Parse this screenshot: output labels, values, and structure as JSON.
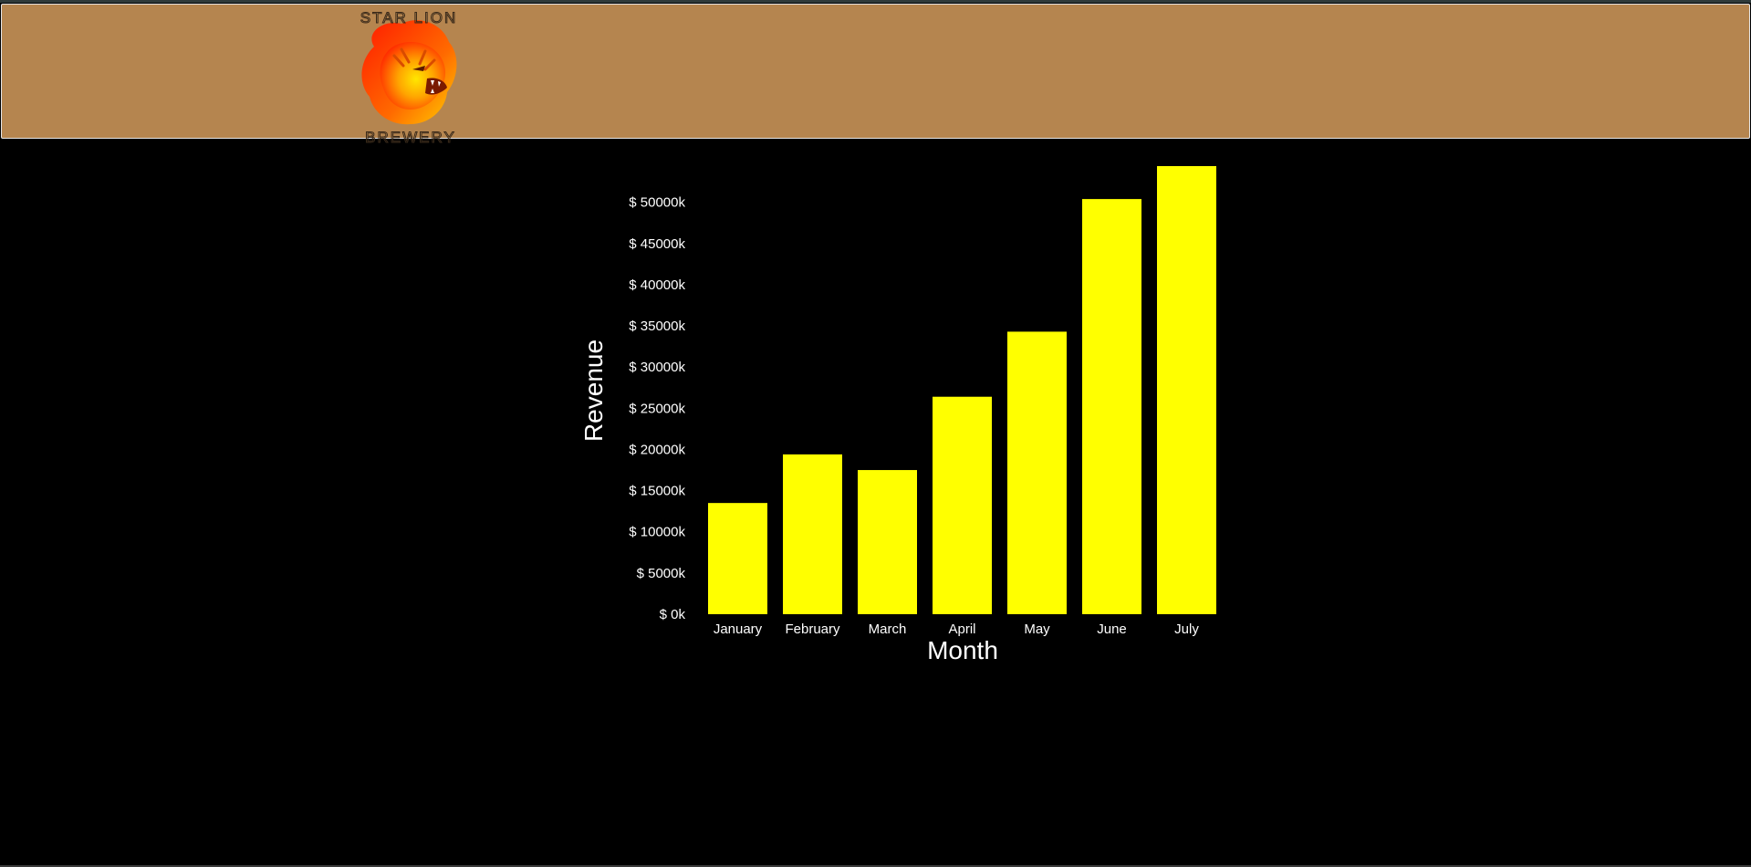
{
  "header": {
    "background_color": "#b5854f",
    "logo": {
      "top_text": "STAR LION",
      "bottom_text": "BREWERY",
      "icon": "lion-head-icon"
    }
  },
  "colors": {
    "page_background": "#000000",
    "bar": "#ffff00",
    "text": "#ffffff"
  },
  "chart_data": {
    "type": "bar",
    "categories": [
      "January",
      "February",
      "March",
      "April",
      "May",
      "June",
      "July"
    ],
    "values": [
      13500,
      19400,
      17500,
      26400,
      34300,
      50400,
      54400
    ],
    "xlabel": "Month",
    "ylabel": "Revenue",
    "ylim": [
      0,
      54400
    ],
    "yticks": [
      0,
      5000,
      10000,
      15000,
      20000,
      25000,
      30000,
      35000,
      40000,
      45000,
      50000
    ],
    "ytick_labels": [
      "$ 0k",
      "$ 5000k",
      "$ 10000k",
      "$ 15000k",
      "$ 20000k",
      "$ 25000k",
      "$ 30000k",
      "$ 35000k",
      "$ 40000k",
      "$ 45000k",
      "$ 50000k"
    ],
    "grid": false,
    "legend": "none"
  }
}
